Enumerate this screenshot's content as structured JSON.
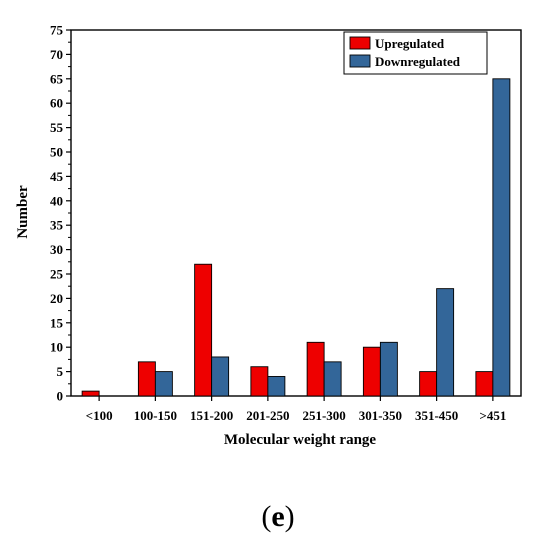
{
  "caption": {
    "open": "(",
    "letter": "e",
    "close": ")"
  },
  "chart_data": {
    "type": "bar",
    "title": "",
    "xlabel": "Molecular weight range",
    "ylabel": "Number",
    "categories": [
      "<100",
      "100-150",
      "151-200",
      "201-250",
      "251-300",
      "301-350",
      "351-450",
      ">451"
    ],
    "series": [
      {
        "name": "Upregulated",
        "color": "#ee0000",
        "values": [
          1,
          7,
          27,
          6,
          11,
          10,
          5,
          5
        ]
      },
      {
        "name": "Downregulated",
        "color": "#336699",
        "values": [
          0,
          5,
          8,
          4,
          7,
          11,
          22,
          65
        ]
      }
    ],
    "ylim": [
      0,
      75
    ],
    "yticks": [
      0,
      5,
      10,
      15,
      20,
      25,
      30,
      35,
      40,
      45,
      50,
      55,
      60,
      65,
      70,
      75
    ],
    "grid": false,
    "legend": "top-right"
  }
}
